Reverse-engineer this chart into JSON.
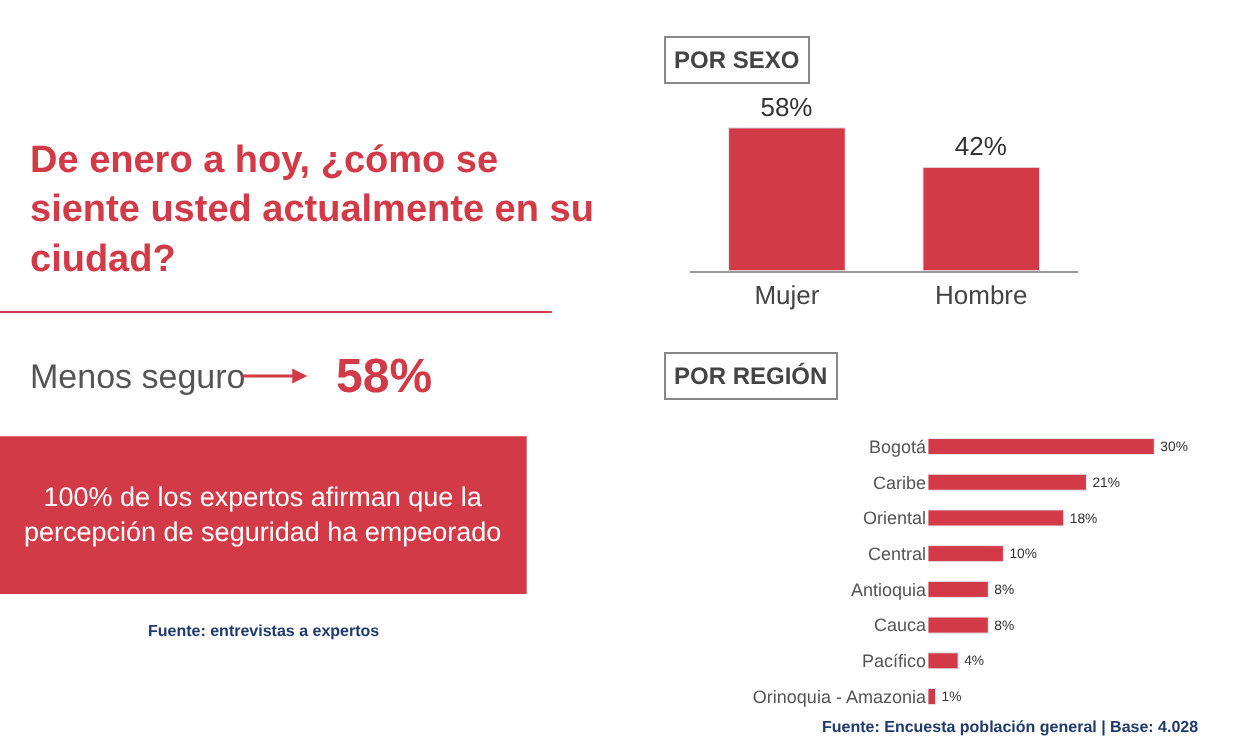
{
  "chart_data": [
    {
      "type": "other",
      "title": "De enero a hoy, ¿cómo se siente usted actualmente en su ciudad?",
      "annotations": [
        "Menos seguro",
        "58%",
        "100% de los expertos afirman que la percepción de seguridad ha empeorado",
        "Fuente: entrevistas a expertos"
      ]
    },
    {
      "type": "bar",
      "title": "POR SEXO",
      "categories": [
        "Mujer",
        "Hombre"
      ],
      "values": [
        58,
        42
      ],
      "value_labels": [
        "58%",
        "42%"
      ],
      "color": "#d33a47"
    },
    {
      "type": "bar",
      "orientation": "horizontal",
      "title": "POR REGIÓN",
      "categories": [
        "Bogotá",
        "Caribe",
        "Oriental",
        "Central",
        "Antioquia",
        "Cauca",
        "Pacífico",
        "Orinoquia - Amazonia"
      ],
      "values": [
        30,
        21,
        18,
        10,
        8,
        8,
        4,
        1
      ],
      "value_labels": [
        "30%",
        "21%",
        "18%",
        "10%",
        "8%",
        "8%",
        "4%",
        "1%"
      ],
      "color": "#d33a47",
      "annotations": [
        "Fuente: Encuesta población general | Base: 4.028"
      ]
    }
  ]
}
